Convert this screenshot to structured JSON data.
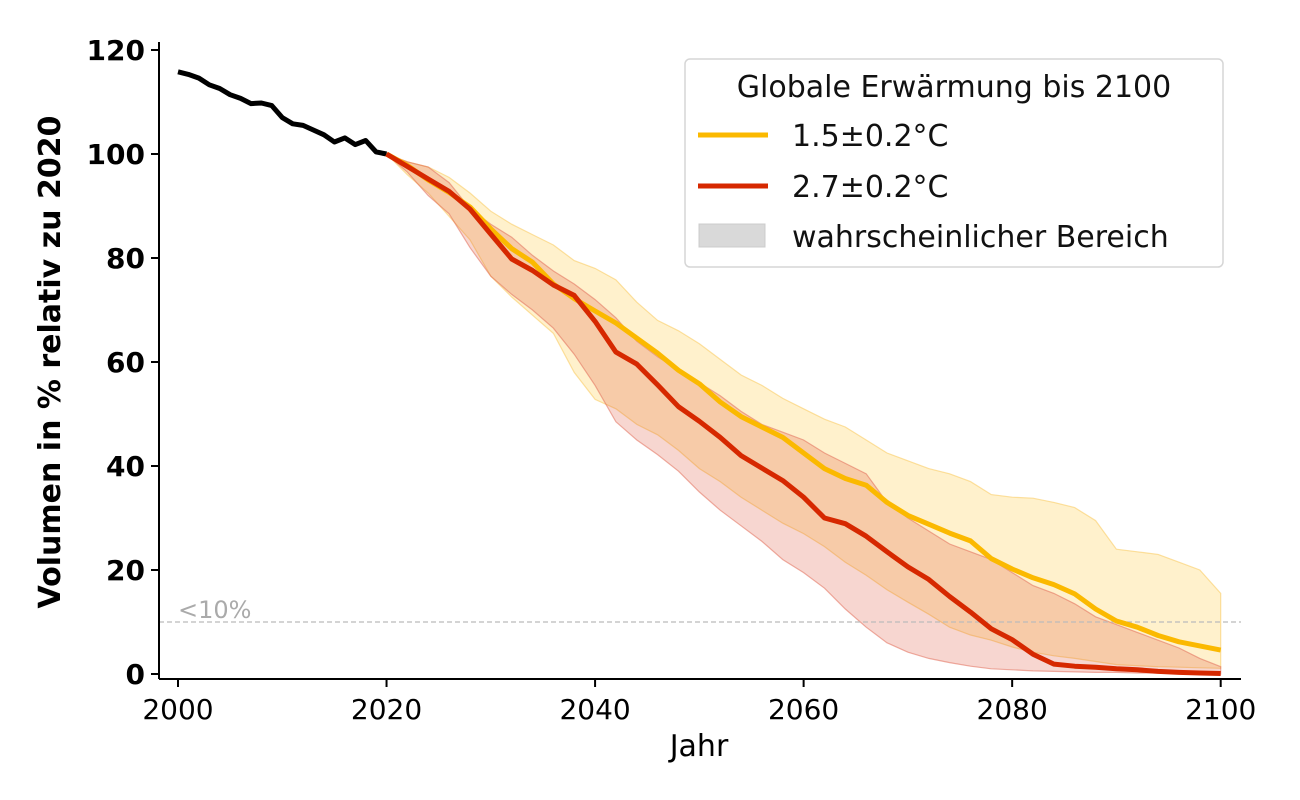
{
  "chart_data": {
    "type": "line",
    "title": "",
    "xlabel": "Jahr",
    "ylabel": "Volumen in % relativ zu 2020",
    "xlim": [
      1998,
      2102
    ],
    "ylim": [
      -1,
      121
    ],
    "x_ticks": [
      2000,
      2020,
      2040,
      2060,
      2080,
      2100
    ],
    "y_ticks": [
      0,
      20,
      40,
      60,
      80,
      100,
      120
    ],
    "grid": false,
    "legend": {
      "title": "Globale Erwärmung bis 2100",
      "placement": "top-right",
      "entries": [
        {
          "label": "1.5±0.2°C",
          "kind": "line",
          "color": "#FBB900"
        },
        {
          "label": "2.7±0.2°C",
          "kind": "line",
          "color": "#D62800"
        },
        {
          "label": "wahrscheinlicher Bereich",
          "kind": "patch",
          "color": "#D9D9D9"
        }
      ]
    },
    "annotations": [
      {
        "text": "<10%",
        "x": 2000,
        "y": 10,
        "kind": "hline",
        "color": "#bbbbbb"
      }
    ],
    "series": [
      {
        "name": "historisch",
        "color": "#000000",
        "x": [
          2000,
          2001,
          2002,
          2003,
          2004,
          2005,
          2006,
          2007,
          2008,
          2009,
          2010,
          2011,
          2012,
          2013,
          2014,
          2015,
          2016,
          2017,
          2018,
          2019,
          2020
        ],
        "y": [
          115.8,
          115.3,
          114.6,
          113.3,
          112.6,
          111.4,
          110.7,
          109.7,
          109.8,
          109.3,
          107.0,
          105.8,
          105.5,
          104.6,
          103.7,
          102.3,
          103.1,
          101.8,
          102.6,
          100.4,
          100.0
        ]
      },
      {
        "name": "1.5±0.2°C",
        "color": "#FBB900",
        "x": [
          2020,
          2022,
          2024,
          2026,
          2028,
          2030,
          2032,
          2034,
          2036,
          2038,
          2040,
          2042,
          2044,
          2046,
          2048,
          2050,
          2052,
          2054,
          2056,
          2058,
          2060,
          2062,
          2064,
          2066,
          2068,
          2070,
          2072,
          2074,
          2076,
          2078,
          2080,
          2082,
          2084,
          2086,
          2088,
          2090,
          2092,
          2094,
          2096,
          2098,
          2100
        ],
        "y": [
          100.0,
          97.8,
          95.0,
          92.6,
          89.8,
          85.6,
          81.8,
          79.2,
          75.0,
          72.2,
          69.8,
          67.5,
          64.6,
          61.7,
          58.4,
          55.8,
          52.3,
          49.5,
          47.5,
          45.5,
          42.5,
          39.5,
          37.6,
          36.3,
          33.0,
          30.5,
          28.8,
          27.1,
          25.6,
          22.2,
          20.2,
          18.5,
          17.2,
          15.4,
          12.5,
          10.2,
          9.0,
          7.4,
          6.2,
          5.4,
          4.6
        ]
      },
      {
        "name": "2.7±0.2°C",
        "color": "#D62800",
        "x": [
          2020,
          2022,
          2024,
          2026,
          2028,
          2030,
          2032,
          2034,
          2036,
          2038,
          2040,
          2042,
          2044,
          2046,
          2048,
          2050,
          2052,
          2054,
          2056,
          2058,
          2060,
          2062,
          2064,
          2066,
          2068,
          2070,
          2072,
          2074,
          2076,
          2078,
          2080,
          2082,
          2084,
          2086,
          2088,
          2090,
          2092,
          2094,
          2096,
          2098,
          2100
        ],
        "y": [
          100.0,
          97.6,
          95.2,
          92.8,
          89.4,
          84.6,
          79.8,
          77.6,
          74.8,
          72.8,
          67.8,
          61.9,
          59.6,
          55.6,
          51.4,
          48.6,
          45.5,
          42.0,
          39.6,
          37.2,
          34.0,
          30.0,
          28.9,
          26.5,
          23.5,
          20.6,
          18.2,
          14.9,
          11.9,
          8.7,
          6.6,
          3.8,
          1.9,
          1.5,
          1.3,
          1.0,
          0.8,
          0.5,
          0.3,
          0.2,
          0.1
        ]
      }
    ],
    "bands": [
      {
        "name": "1.5±0.2°C wahrscheinlicher Bereich",
        "color": "#FBB900",
        "x": [
          2020,
          2022,
          2024,
          2026,
          2028,
          2030,
          2032,
          2034,
          2036,
          2038,
          2040,
          2042,
          2044,
          2046,
          2048,
          2050,
          2052,
          2054,
          2056,
          2058,
          2060,
          2062,
          2064,
          2066,
          2068,
          2070,
          2072,
          2074,
          2076,
          2078,
          2080,
          2082,
          2084,
          2086,
          2088,
          2090,
          2092,
          2094,
          2096,
          2098,
          2100
        ],
        "lower": [
          100.0,
          96.0,
          92.5,
          88.0,
          83.5,
          76.5,
          72.5,
          69.0,
          65.5,
          58.0,
          52.8,
          51.0,
          48.0,
          46.0,
          43.0,
          39.5,
          37.0,
          34.0,
          31.5,
          29.0,
          27.0,
          24.5,
          21.5,
          19.0,
          16.2,
          13.8,
          11.5,
          9.0,
          7.5,
          6.5,
          5.2,
          4.2,
          3.5,
          3.0,
          2.4,
          1.8,
          1.6,
          1.4,
          1.3,
          1.2,
          1.1
        ],
        "upper": [
          100.0,
          98.5,
          97.5,
          95.5,
          92.5,
          89.0,
          86.5,
          84.5,
          82.5,
          79.5,
          78.0,
          75.8,
          71.5,
          68.0,
          66.0,
          63.5,
          60.5,
          57.5,
          55.5,
          53.0,
          51.0,
          49.0,
          47.5,
          45.0,
          42.5,
          41.0,
          39.5,
          38.5,
          37.0,
          34.5,
          34.0,
          33.8,
          33.0,
          32.0,
          29.5,
          24.0,
          23.5,
          23.0,
          21.5,
          20.0,
          15.5
        ]
      },
      {
        "name": "2.7±0.2°C wahrscheinlicher Bereich",
        "color": "#D62800",
        "x": [
          2020,
          2022,
          2024,
          2026,
          2028,
          2030,
          2032,
          2034,
          2036,
          2038,
          2040,
          2042,
          2044,
          2046,
          2048,
          2050,
          2052,
          2054,
          2056,
          2058,
          2060,
          2062,
          2064,
          2066,
          2068,
          2070,
          2072,
          2074,
          2076,
          2078,
          2080,
          2082,
          2084,
          2086,
          2088,
          2090,
          2092,
          2094,
          2096,
          2098,
          2100
        ],
        "lower": [
          100.0,
          96.5,
          92.0,
          88.5,
          82.0,
          76.5,
          73.0,
          70.0,
          66.5,
          61.5,
          55.5,
          48.5,
          45.0,
          42.2,
          39.0,
          35.0,
          31.5,
          28.5,
          25.5,
          22.0,
          19.5,
          16.5,
          12.5,
          9.0,
          6.0,
          4.2,
          3.0,
          2.2,
          1.5,
          1.0,
          0.8,
          0.6,
          0.5,
          0.4,
          0.3,
          0.3,
          0.2,
          0.2,
          0.1,
          0.1,
          0.0
        ],
        "upper": [
          100.0,
          98.5,
          97.5,
          94.5,
          89.5,
          86.5,
          84.0,
          80.5,
          77.5,
          75.0,
          72.0,
          68.5,
          64.0,
          61.0,
          58.5,
          56.0,
          53.5,
          50.5,
          48.0,
          46.5,
          45.0,
          42.5,
          40.5,
          38.5,
          33.0,
          30.0,
          27.5,
          25.0,
          23.5,
          22.0,
          19.5,
          17.0,
          15.5,
          13.5,
          11.0,
          9.5,
          8.0,
          6.5,
          5.0,
          3.0,
          1.4
        ]
      }
    ]
  }
}
